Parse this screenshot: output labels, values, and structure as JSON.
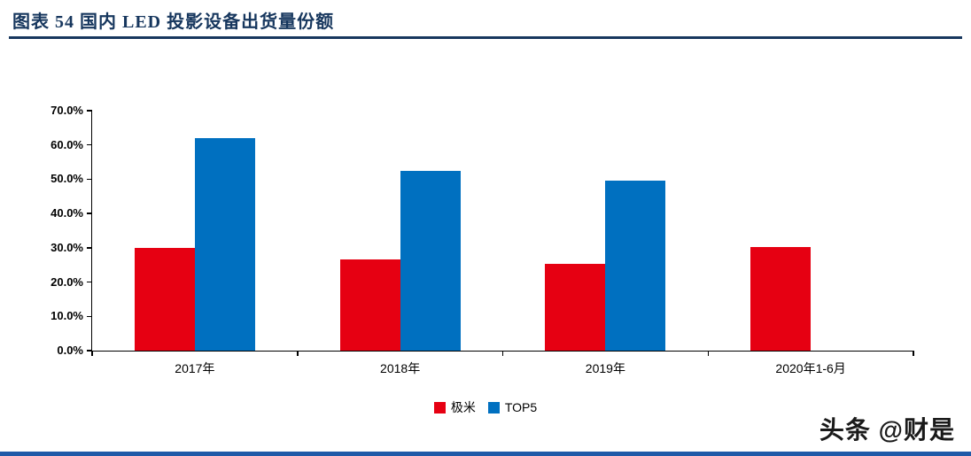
{
  "header": {
    "title": "图表 54  国内 LED 投影设备出货量份额"
  },
  "watermark": {
    "text": "头条 @财是"
  },
  "colors": {
    "title_navy": "#17375e",
    "jimi_red": "#e60012",
    "top5_blue": "#0070c0",
    "footer_blue": "#1f5aa8"
  },
  "chart_data": {
    "type": "bar",
    "title": "国内 LED 投影设备出货量份额",
    "categories": [
      "2017年",
      "2018年",
      "2019年",
      "2020年1-6月"
    ],
    "series": [
      {
        "name": "极米",
        "color": "#e60012",
        "values": [
          30.0,
          26.7,
          25.2,
          30.3
        ]
      },
      {
        "name": "TOP5",
        "color": "#0070c0",
        "values": [
          62.0,
          52.5,
          49.5,
          null
        ]
      }
    ],
    "ylim": [
      0,
      70
    ],
    "ystep": 10,
    "yticks": [
      "0.0%",
      "10.0%",
      "20.0%",
      "30.0%",
      "40.0%",
      "50.0%",
      "60.0%",
      "70.0%"
    ],
    "grid": false,
    "legend_position": "bottom"
  }
}
